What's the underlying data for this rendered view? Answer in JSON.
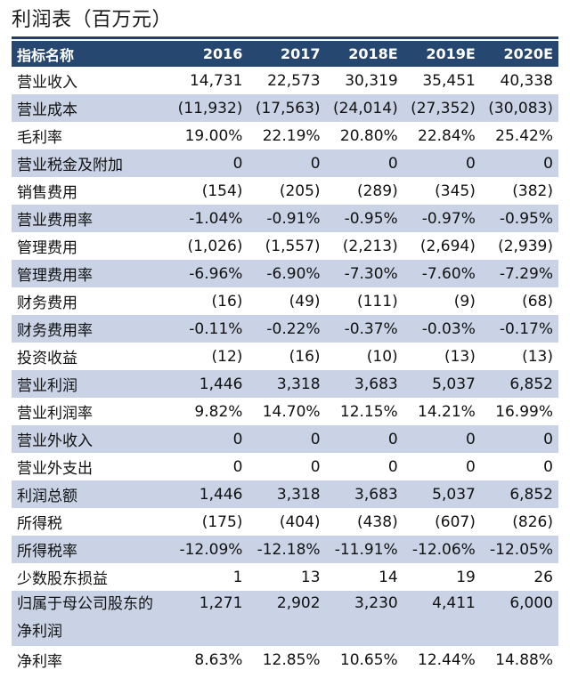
{
  "title": "利润表（百万元）",
  "header": {
    "name": "指标名称",
    "years": [
      "2016",
      "2017",
      "2018E",
      "2019E",
      "2020E"
    ]
  },
  "rows": [
    {
      "name": "营业收入",
      "values": [
        "14,731",
        "22,573",
        "30,319",
        "35,451",
        "40,338"
      ]
    },
    {
      "name": "营业成本",
      "values": [
        "(11,932)",
        "(17,563)",
        "(24,014)",
        "(27,352)",
        "(30,083)"
      ]
    },
    {
      "name": "毛利率",
      "values": [
        "19.00%",
        "22.19%",
        "20.80%",
        "22.84%",
        "25.42%"
      ]
    },
    {
      "name": "营业税金及附加",
      "values": [
        "0",
        "0",
        "0",
        "0",
        "0"
      ]
    },
    {
      "name": "销售费用",
      "values": [
        "(154)",
        "(205)",
        "(289)",
        "(345)",
        "(382)"
      ]
    },
    {
      "name": "营业费用率",
      "values": [
        "-1.04%",
        "-0.91%",
        "-0.95%",
        "-0.97%",
        "-0.95%"
      ]
    },
    {
      "name": "管理费用",
      "values": [
        "(1,026)",
        "(1,557)",
        "(2,213)",
        "(2,694)",
        "(2,939)"
      ]
    },
    {
      "name": "管理费用率",
      "values": [
        "-6.96%",
        "-6.90%",
        "-7.30%",
        "-7.60%",
        "-7.29%"
      ]
    },
    {
      "name": "财务费用",
      "values": [
        "(16)",
        "(49)",
        "(111)",
        "(9)",
        "(68)"
      ]
    },
    {
      "name": "财务费用率",
      "values": [
        "-0.11%",
        "-0.22%",
        "-0.37%",
        "-0.03%",
        "-0.17%"
      ]
    },
    {
      "name": "投资收益",
      "values": [
        "(12)",
        "(16)",
        "(10)",
        "(13)",
        "(13)"
      ]
    },
    {
      "name": "营业利润",
      "values": [
        "1,446",
        "3,318",
        "3,683",
        "5,037",
        "6,852"
      ]
    },
    {
      "name": "营业利润率",
      "values": [
        "9.82%",
        "14.70%",
        "12.15%",
        "14.21%",
        "16.99%"
      ]
    },
    {
      "name": "营业外收入",
      "values": [
        "0",
        "0",
        "0",
        "0",
        "0"
      ]
    },
    {
      "name": "营业外支出",
      "values": [
        "0",
        "0",
        "0",
        "0",
        "0"
      ]
    },
    {
      "name": "利润总额",
      "values": [
        "1,446",
        "3,318",
        "3,683",
        "5,037",
        "6,852"
      ]
    },
    {
      "name": "所得税",
      "values": [
        "(175)",
        "(404)",
        "(438)",
        "(607)",
        "(826)"
      ]
    },
    {
      "name": "所得税率",
      "values": [
        "-12.09%",
        "-12.18%",
        "-11.91%",
        "-12.06%",
        "-12.05%"
      ]
    },
    {
      "name": "少数股东损益",
      "values": [
        "1",
        "13",
        "14",
        "19",
        "26"
      ]
    },
    {
      "name": "归属于母公司股东的净利润",
      "values": [
        "1,271",
        "2,902",
        "3,230",
        "4,411",
        "6,000"
      ]
    },
    {
      "name": "净利率",
      "values": [
        "8.63%",
        "12.85%",
        "10.65%",
        "12.44%",
        "14.88%"
      ]
    }
  ],
  "colors": {
    "header_bg": "#26476f",
    "header_text": "#ffffff",
    "shaded_row": "#c9d3e5",
    "title_rule": "#1f3f66"
  }
}
